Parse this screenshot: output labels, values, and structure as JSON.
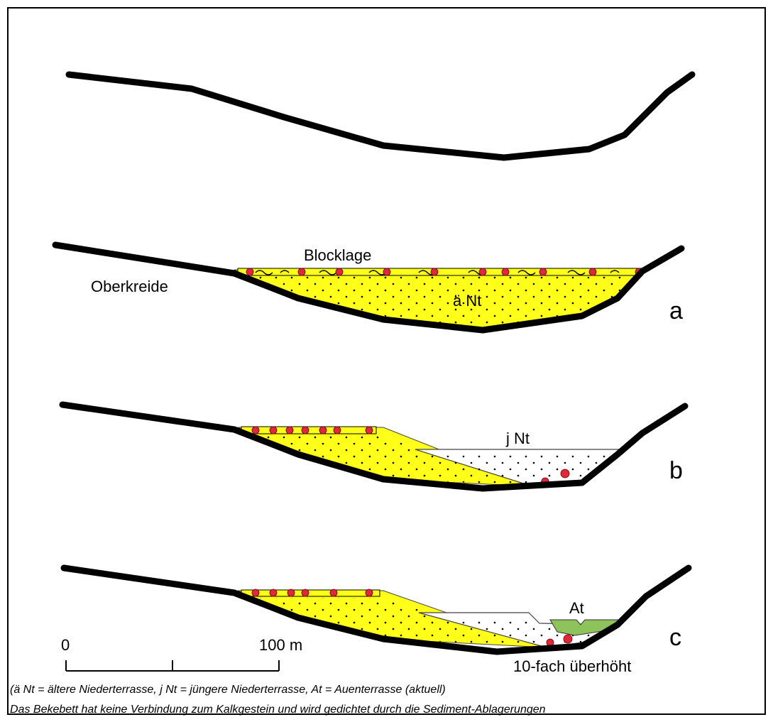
{
  "panels": [
    {
      "label": "a",
      "annotations": [
        "Blocklage",
        "Oberkreide",
        "ä Nt"
      ]
    },
    {
      "label": "b",
      "annotations": [
        "j Nt"
      ]
    },
    {
      "label": "c",
      "annotations": [
        "At"
      ]
    }
  ],
  "scale": {
    "start": "0",
    "end": "100 m",
    "exaggeration": "10-fach überhöht"
  },
  "legend": {
    "abbreviations": "(ä Nt = ältere Niederterrasse, j Nt = jüngere Niederterrasse, At = Auenterrasse (aktuell)",
    "note": "Das Bekebett hat keine Verbindung zum Kalkgestein und wird gedichtet durch die Sediment-Ablagerungen"
  }
}
